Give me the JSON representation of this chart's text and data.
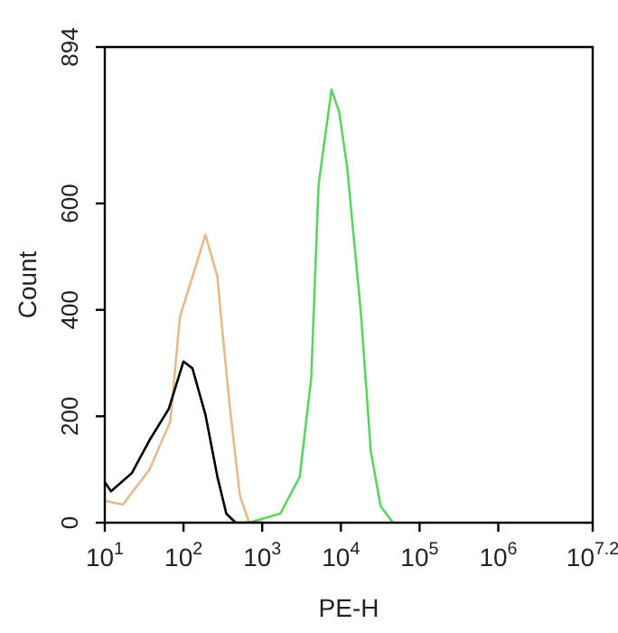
{
  "chart_data": {
    "type": "line",
    "xlabel": "PE-H",
    "ylabel": "Count",
    "log": "x",
    "marker": "none",
    "legend": false,
    "grid": false,
    "xlim": [
      10,
      15848932
    ],
    "ylim": [
      0,
      894
    ],
    "xticks": [
      {
        "value": 10,
        "label": "10$^{1}$"
      },
      {
        "value": 100,
        "label": "10$^{2}$"
      },
      {
        "value": 1000,
        "label": "10$^{3}$"
      },
      {
        "value": 10000,
        "label": "10$^{4}$"
      },
      {
        "value": 100000,
        "label": "10$^{5}$"
      },
      {
        "value": 1000000,
        "label": "10$^{6}$"
      },
      {
        "value": 15848932,
        "label": "10$^{7.2}$"
      }
    ],
    "yticks": [
      0,
      200,
      400,
      600,
      894
    ],
    "series": [
      {
        "color": "#000000",
        "x": [
          10,
          12,
          22,
          37,
          65,
          100,
          130,
          190,
          270,
          350,
          460,
          1000
        ],
        "values": [
          76,
          59,
          93,
          155,
          214,
          303,
          290,
          203,
          86,
          17,
          0,
          0
        ]
      },
      {
        "color": "#e8b98a",
        "x": [
          10,
          17,
          37,
          68,
          90,
          110,
          130,
          190,
          270,
          300,
          390,
          520,
          680
        ],
        "values": [
          41,
          34,
          100,
          190,
          386,
          428,
          462,
          541,
          462,
          386,
          214,
          52,
          0
        ]
      },
      {
        "color": "#5fd35f",
        "x": [
          680,
          1700,
          3000,
          4200,
          5200,
          7600,
          9500,
          12000,
          18000,
          24000,
          32000,
          46000
        ],
        "values": [
          0,
          17,
          86,
          272,
          634,
          814,
          772,
          669,
          393,
          134,
          31,
          0
        ]
      }
    ]
  }
}
